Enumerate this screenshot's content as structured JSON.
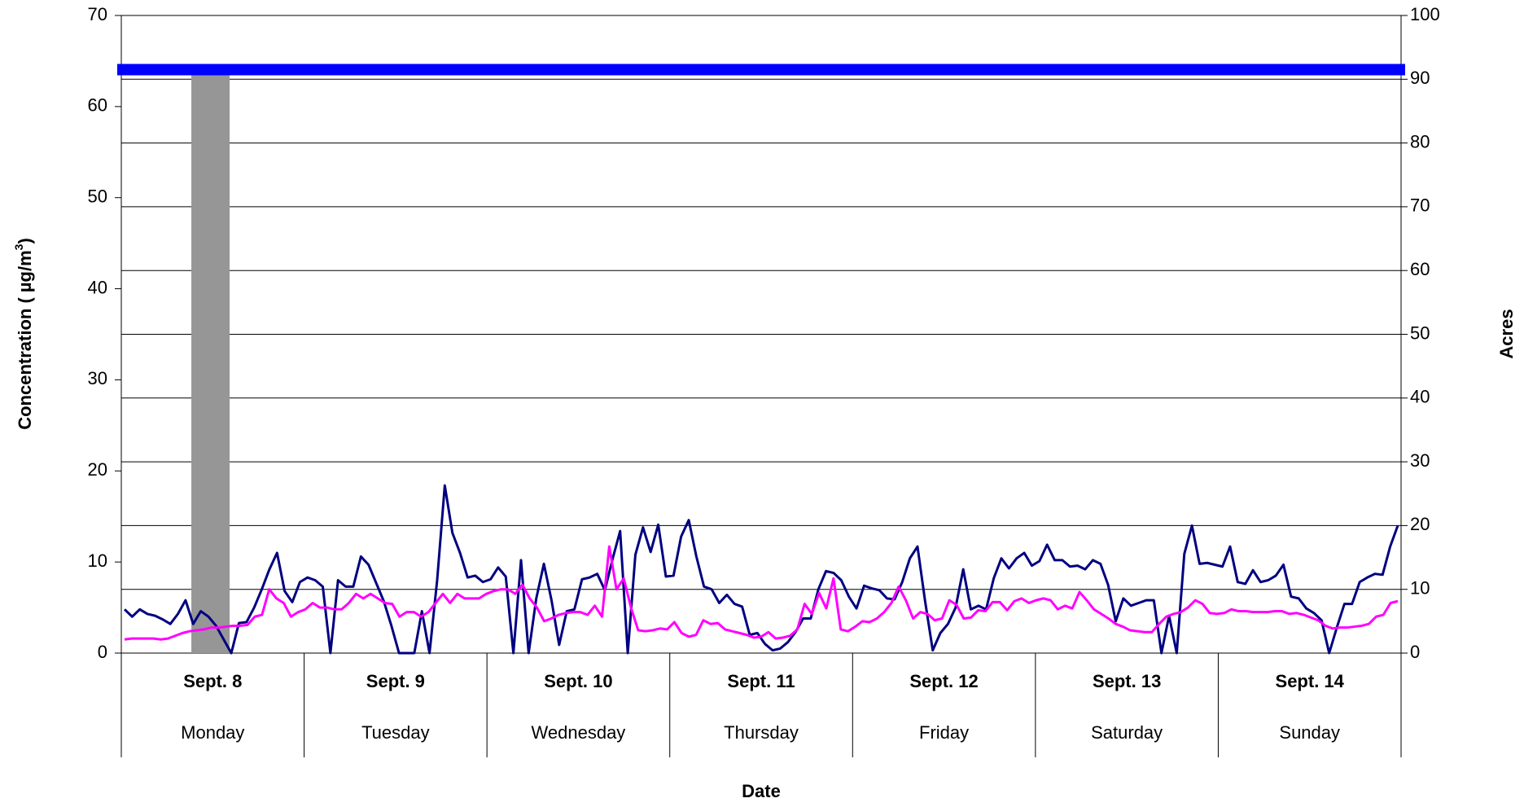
{
  "chart_data": {
    "type": "line",
    "xlabel": "Date",
    "ylabel": "Concentration ( µg/m",
    "ylabel_sup": "3",
    "ylabel_end": ")",
    "y2label": "Acres",
    "groups": [
      {
        "date": "Sept. 8",
        "day": "Monday"
      },
      {
        "date": "Sept. 9",
        "day": "Tuesday"
      },
      {
        "date": "Sept. 10",
        "day": "Wednesday"
      },
      {
        "date": "Sept. 11",
        "day": "Thursday"
      },
      {
        "date": "Sept. 12",
        "day": "Friday"
      },
      {
        "date": "Sept. 13",
        "day": "Saturday"
      },
      {
        "date": "Sept. 14",
        "day": "Sunday"
      }
    ],
    "ylim": [
      0,
      70
    ],
    "yticks": [
      0,
      10,
      20,
      30,
      40,
      50,
      60,
      70
    ],
    "y2lim": [
      0,
      100
    ],
    "y2ticks": [
      0,
      10,
      20,
      30,
      40,
      50,
      60,
      70,
      80,
      90,
      100
    ],
    "grid": true,
    "series": [
      {
        "color": "#000080",
        "values": [
          4.8,
          4.0,
          4.8,
          4.3,
          4.1,
          3.7,
          3.2,
          4.3,
          5.8,
          3.2,
          4.6,
          4.0,
          3.0,
          1.5,
          0,
          3.3,
          3.4,
          5.0,
          7.0,
          9.2,
          11.0,
          6.8,
          5.6,
          7.8,
          8.3,
          8.0,
          7.3,
          0,
          8.0,
          7.3,
          7.3,
          10.6,
          9.7,
          7.7,
          5.7,
          3.0,
          0,
          0,
          0,
          4.6,
          0,
          8.0,
          18.4,
          13.2,
          11.0,
          8.3,
          8.5,
          7.8,
          8.1,
          9.4,
          8.4,
          0,
          10.2,
          0,
          6.0,
          9.8,
          5.8,
          0.9,
          4.6,
          4.8,
          8.1,
          8.3,
          8.7,
          6.9,
          10.3,
          13.4,
          0,
          10.8,
          13.8,
          11.1,
          14.1,
          8.4,
          8.5,
          12.8,
          14.6,
          10.6,
          7.3,
          7.0,
          5.5,
          6.4,
          5.4,
          5.1,
          2.0,
          2.2,
          1.0,
          0.3,
          0.5,
          1.2,
          2.3,
          3.8,
          3.8,
          7.0,
          9.0,
          8.8,
          8.0,
          6.2,
          4.9,
          7.4,
          7.1,
          6.9,
          6.0,
          5.9,
          7.8,
          10.4,
          11.7,
          5.7,
          0.3,
          2.2,
          3.2,
          5.0,
          9.2,
          4.8,
          5.2,
          4.8,
          8.2,
          10.4,
          9.3,
          10.4,
          11.0,
          9.6,
          10.1,
          11.9,
          10.2,
          10.2,
          9.5,
          9.6,
          9.2,
          10.2,
          9.8,
          7.5,
          3.5,
          6.0,
          5.2,
          5.5,
          5.8,
          5.8,
          0,
          4.1,
          0,
          10.9,
          14.0,
          9.8,
          9.9,
          9.7,
          9.5,
          11.7,
          7.8,
          7.6,
          9.1,
          7.8,
          8.0,
          8.5,
          9.7,
          6.2,
          6.0,
          4.9,
          4.4,
          3.6,
          0,
          2.8,
          5.4,
          5.4,
          7.8,
          8.3,
          8.7,
          8.6,
          11.7,
          14.0
        ]
      },
      {
        "color": "#ff00ff",
        "values": [
          1.5,
          1.6,
          1.6,
          1.6,
          1.6,
          1.5,
          1.6,
          1.9,
          2.2,
          2.4,
          2.5,
          2.6,
          2.8,
          2.8,
          2.9,
          3.0,
          3.0,
          3.1,
          4.0,
          4.2,
          7.0,
          6.0,
          5.5,
          4.0,
          4.5,
          4.8,
          5.5,
          5.0,
          5.0,
          4.8,
          4.8,
          5.5,
          6.5,
          6.0,
          6.5,
          6.0,
          5.5,
          5.4,
          4.0,
          4.5,
          4.5,
          4.0,
          4.5,
          5.5,
          6.5,
          5.5,
          6.5,
          6.0,
          6.0,
          6.0,
          6.5,
          6.8,
          7.0,
          7.0,
          6.5,
          7.5,
          6.0,
          5.0,
          3.5,
          3.8,
          4.2,
          4.4,
          4.5,
          4.5,
          4.2,
          5.2,
          4.0,
          11.7,
          7.0,
          8.2,
          5.0,
          2.5,
          2.4,
          2.5,
          2.7,
          2.6,
          3.4,
          2.2,
          1.8,
          2.0,
          3.6,
          3.2,
          3.3,
          2.6,
          2.4,
          2.2,
          2.0,
          1.7,
          1.8,
          2.3,
          1.6,
          1.7,
          1.9,
          2.6,
          5.4,
          4.3,
          6.6,
          4.9,
          8.2,
          2.6,
          2.4,
          2.9,
          3.5,
          3.4,
          3.8,
          4.5,
          5.5,
          7.3,
          5.8,
          3.8,
          4.5,
          4.3,
          3.6,
          3.8,
          5.8,
          5.3,
          3.8,
          3.9,
          4.7,
          4.6,
          5.6,
          5.6,
          4.7,
          5.7,
          6.0,
          5.5,
          5.8,
          6.0,
          5.8,
          4.8,
          5.2,
          4.9,
          6.7,
          5.8,
          4.8,
          4.3,
          3.8,
          3.2,
          2.9,
          2.5,
          2.4,
          2.3,
          2.3,
          3.2,
          4.0,
          4.3,
          4.5,
          5.0,
          5.8,
          5.4,
          4.4,
          4.3,
          4.4,
          4.8,
          4.6,
          4.6,
          4.5,
          4.5,
          4.5,
          4.6,
          4.6,
          4.3,
          4.4,
          4.2,
          3.9,
          3.6,
          3.0,
          2.7,
          2.8,
          2.8,
          2.9,
          3.0,
          3.2,
          4.0,
          4.2,
          5.5,
          5.7
        ]
      },
      {
        "color": "#0000ff",
        "axis": "y2",
        "values": [
          91.5,
          91.5
        ]
      }
    ],
    "bar": {
      "color": "#969696",
      "axis": "y2",
      "values": [
        91
      ]
    }
  }
}
